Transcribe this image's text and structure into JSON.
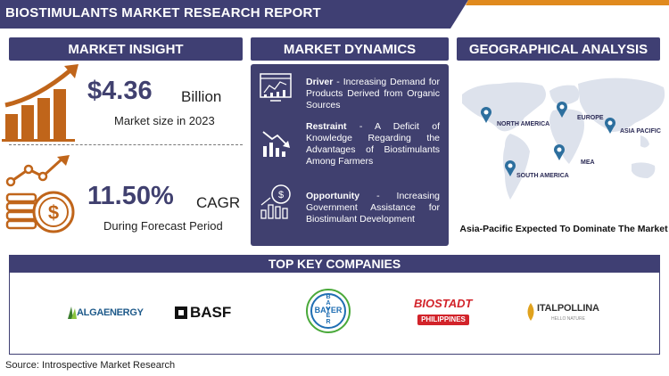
{
  "report_title": "BIOSTIMULANTS MARKET RESEARCH REPORT",
  "sections": {
    "market_insight": "MARKET INSIGHT",
    "market_dynamics": "MARKET DYNAMICS",
    "geographical_analysis": "GEOGRAPHICAL ANALYSIS",
    "top_key_companies": "TOP KEY COMPANIES"
  },
  "market_insight": {
    "size_value": "$4.36",
    "size_unit": "Billion",
    "size_caption": "Market size in 2023",
    "cagr_value": "11.50%",
    "cagr_unit": "CAGR",
    "cagr_caption": "During Forecast Period"
  },
  "market_dynamics": {
    "driver_label": "Driver",
    "driver_text": " - Increasing Demand for Products Derived from Organic Sources",
    "restraint_label": "Restraint",
    "restraint_text": " - A Deficit of Knowledge Regarding the Advantages of Biostimulants Among Farmers",
    "opportunity_label": "Opportunity",
    "opportunity_text": " - Increasing Government Assistance for Biostimulant Development"
  },
  "geography": {
    "regions": [
      "NORTH AMERICA",
      "EUROPE",
      "ASIA PACIFIC",
      "MEA",
      "SOUTH AMERICA"
    ],
    "caption": "Asia-Pacific Expected To Dominate The Market"
  },
  "companies": {
    "algaenergy": "ALGAENERGY",
    "basf": "BASF",
    "bayer_h": "BAYER",
    "bayer_v": "BAYER",
    "biostadt": "BIOSTADT",
    "biostadt_sub": "PHILIPPINES",
    "italpollina": "ITALPOLLINA",
    "italpollina_sub": "HELLO NATURE"
  },
  "source": "Source: Introspective Market Research",
  "colors": {
    "navy": "#3f3f73",
    "accent_orange": "#e08a1e",
    "icon_brown": "#c0651a"
  }
}
